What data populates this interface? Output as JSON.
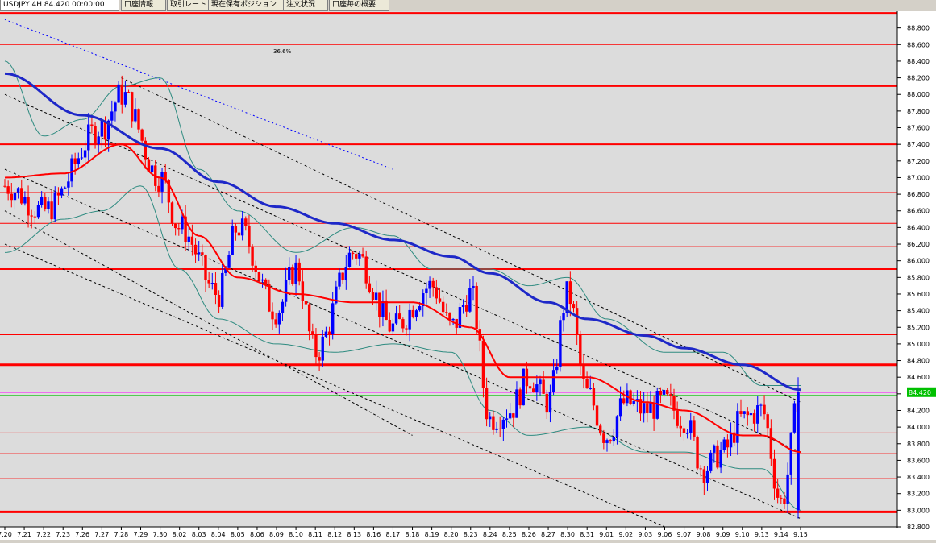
{
  "tabs": [
    {
      "label": "USDJPY 4H 84.420 00:00:00",
      "active": true
    },
    {
      "label": "口座情報",
      "active": false
    },
    {
      "label": "取引レート",
      "active": false
    },
    {
      "label": "現在保有ポジション",
      "active": false
    },
    {
      "label": "注文状況",
      "active": false
    },
    {
      "label": "口座毎の概要",
      "active": false
    }
  ],
  "colors": {
    "background": "#dcdcdc",
    "candle_up": "#0000ff",
    "candle_down": "#ff0000",
    "ma_long": "#1e28c8",
    "ma_short": "#ff0000",
    "bands": "#2e8b80",
    "horizontal_lines": "#ff0000",
    "price_line": "#ff00ff",
    "green_line": "#00c000",
    "price_box": "#00c000"
  },
  "chart_data": {
    "type": "candlestick",
    "symbol": "USDJPY",
    "timeframe": "4H",
    "current_price": 84.42,
    "current_price_label": "84.420",
    "ylim": [
      82.8,
      89.0
    ],
    "y_ticks": [
      "88.800",
      "88.600",
      "88.400",
      "88.200",
      "88.000",
      "87.800",
      "87.600",
      "87.400",
      "87.200",
      "87.000",
      "86.800",
      "86.600",
      "86.400",
      "86.200",
      "86.000",
      "85.800",
      "85.600",
      "85.400",
      "85.200",
      "85.000",
      "84.800",
      "84.600",
      "84.400",
      "84.200",
      "84.000",
      "83.800",
      "83.600",
      "83.400",
      "83.200",
      "83.000",
      "82.800"
    ],
    "x_ticks": [
      "7.20",
      "7.21",
      "7.22",
      "7.23",
      "7.26",
      "7.27",
      "7.28",
      "7.29",
      "7.30",
      "8.02",
      "8.03",
      "8.04",
      "8.05",
      "8.06",
      "8.09",
      "8.10",
      "8.11",
      "8.12",
      "8.13",
      "8.16",
      "8.17",
      "8.18",
      "8.19",
      "8.20",
      "8.23",
      "8.24",
      "8.25",
      "8.26",
      "8.27",
      "8.30",
      "8.31",
      "9.01",
      "9.02",
      "9.03",
      "9.06",
      "9.07",
      "9.08",
      "9.09",
      "9.10",
      "9.13",
      "9.14",
      "9.15"
    ],
    "annotation": "36.6%",
    "horizontal_lines": [
      {
        "price": 88.98,
        "width": 2
      },
      {
        "price": 88.6,
        "width": 1
      },
      {
        "price": 88.1,
        "width": 2
      },
      {
        "price": 87.4,
        "width": 2
      },
      {
        "price": 86.82,
        "width": 1
      },
      {
        "price": 86.45,
        "width": 1
      },
      {
        "price": 86.17,
        "width": 1
      },
      {
        "price": 85.9,
        "width": 2
      },
      {
        "price": 85.11,
        "width": 1
      },
      {
        "price": 84.75,
        "width": 3
      },
      {
        "price": 83.93,
        "width": 1
      },
      {
        "price": 83.68,
        "width": 1
      },
      {
        "price": 83.38,
        "width": 1
      },
      {
        "price": 82.98,
        "width": 3
      }
    ],
    "green_line": 84.38,
    "key_points": [
      {
        "date": "7.20",
        "price": 86.9
      },
      {
        "date": "7.22",
        "price": 86.6
      },
      {
        "date": "7.27",
        "price": 87.6
      },
      {
        "date": "7.28",
        "price": 88.0
      },
      {
        "date": "7.30",
        "price": 87.0
      },
      {
        "date": "8.02",
        "price": 86.4
      },
      {
        "date": "8.04",
        "price": 85.6
      },
      {
        "date": "8.05",
        "price": 86.4
      },
      {
        "date": "8.09",
        "price": 85.4
      },
      {
        "date": "8.10",
        "price": 85.9
      },
      {
        "date": "8.11",
        "price": 84.9
      },
      {
        "date": "8.13",
        "price": 86.1
      },
      {
        "date": "8.17",
        "price": 85.2
      },
      {
        "date": "8.19",
        "price": 85.7
      },
      {
        "date": "8.20",
        "price": 85.2
      },
      {
        "date": "8.23",
        "price": 85.6
      },
      {
        "date": "8.24",
        "price": 84.1
      },
      {
        "date": "8.25",
        "price": 84.2
      },
      {
        "date": "8.26",
        "price": 84.6
      },
      {
        "date": "8.27",
        "price": 84.3
      },
      {
        "date": "8.30",
        "price": 85.6
      },
      {
        "date": "8.31",
        "price": 84.4
      },
      {
        "date": "9.01",
        "price": 83.9
      },
      {
        "date": "9.02",
        "price": 84.3
      },
      {
        "date": "9.03",
        "price": 84.2
      },
      {
        "date": "9.06",
        "price": 84.3
      },
      {
        "date": "9.07",
        "price": 84.1
      },
      {
        "date": "9.08",
        "price": 83.5
      },
      {
        "date": "9.09",
        "price": 83.7
      },
      {
        "date": "9.10",
        "price": 84.1
      },
      {
        "date": "9.13",
        "price": 84.2
      },
      {
        "date": "9.14",
        "price": 83.1
      },
      {
        "date": "9.15",
        "price": 84.42
      }
    ],
    "ma_long": [
      {
        "date": "7.20",
        "price": 88.25
      },
      {
        "date": "7.26",
        "price": 87.75
      },
      {
        "date": "7.30",
        "price": 87.35
      },
      {
        "date": "8.04",
        "price": 86.95
      },
      {
        "date": "8.09",
        "price": 86.65
      },
      {
        "date": "8.12",
        "price": 86.45
      },
      {
        "date": "8.17",
        "price": 86.25
      },
      {
        "date": "8.20",
        "price": 86.05
      },
      {
        "date": "8.24",
        "price": 85.85
      },
      {
        "date": "8.27",
        "price": 85.5
      },
      {
        "date": "8.31",
        "price": 85.3
      },
      {
        "date": "9.03",
        "price": 85.1
      },
      {
        "date": "9.07",
        "price": 84.95
      },
      {
        "date": "9.10",
        "price": 84.75
      },
      {
        "date": "9.15",
        "price": 84.45
      }
    ],
    "ma_short": [
      {
        "date": "7.20",
        "price": 87.0
      },
      {
        "date": "7.23",
        "price": 87.05
      },
      {
        "date": "7.28",
        "price": 87.4
      },
      {
        "date": "7.30",
        "price": 87.0
      },
      {
        "date": "8.03",
        "price": 86.3
      },
      {
        "date": "8.05",
        "price": 85.8
      },
      {
        "date": "8.10",
        "price": 85.6
      },
      {
        "date": "8.13",
        "price": 85.5
      },
      {
        "date": "8.18",
        "price": 85.5
      },
      {
        "date": "8.23",
        "price": 85.2
      },
      {
        "date": "8.25",
        "price": 84.6
      },
      {
        "date": "8.27",
        "price": 84.6
      },
      {
        "date": "8.31",
        "price": 84.6
      },
      {
        "date": "9.03",
        "price": 84.3
      },
      {
        "date": "9.07",
        "price": 84.2
      },
      {
        "date": "9.10",
        "price": 83.9
      },
      {
        "date": "9.13",
        "price": 83.9
      },
      {
        "date": "9.15",
        "price": 83.7
      }
    ],
    "band_upper": [
      {
        "date": "7.20",
        "price": 88.4
      },
      {
        "date": "7.22",
        "price": 87.5
      },
      {
        "date": "7.26",
        "price": 87.7
      },
      {
        "date": "7.28",
        "price": 88.1
      },
      {
        "date": "7.30",
        "price": 88.2
      },
      {
        "date": "8.03",
        "price": 87.1
      },
      {
        "date": "8.05",
        "price": 86.6
      },
      {
        "date": "8.10",
        "price": 86.1
      },
      {
        "date": "8.13",
        "price": 86.4
      },
      {
        "date": "8.17",
        "price": 86.3
      },
      {
        "date": "8.19",
        "price": 85.9
      },
      {
        "date": "8.24",
        "price": 85.9
      },
      {
        "date": "8.26",
        "price": 85.7
      },
      {
        "date": "8.30",
        "price": 85.8
      },
      {
        "date": "9.01",
        "price": 85.3
      },
      {
        "date": "9.06",
        "price": 84.9
      },
      {
        "date": "9.09",
        "price": 84.9
      },
      {
        "date": "9.13",
        "price": 84.5
      },
      {
        "date": "9.15",
        "price": 84.5
      }
    ],
    "band_lower": [
      {
        "date": "7.20",
        "price": 86.1
      },
      {
        "date": "7.23",
        "price": 86.5
      },
      {
        "date": "7.27",
        "price": 86.6
      },
      {
        "date": "7.29",
        "price": 86.9
      },
      {
        "date": "8.02",
        "price": 85.9
      },
      {
        "date": "8.04",
        "price": 85.3
      },
      {
        "date": "8.09",
        "price": 85.0
      },
      {
        "date": "8.12",
        "price": 84.9
      },
      {
        "date": "8.17",
        "price": 85.0
      },
      {
        "date": "8.20",
        "price": 84.9
      },
      {
        "date": "8.24",
        "price": 84.2
      },
      {
        "date": "8.26",
        "price": 83.9
      },
      {
        "date": "8.31",
        "price": 84.0
      },
      {
        "date": "9.03",
        "price": 83.7
      },
      {
        "date": "9.07",
        "price": 83.7
      },
      {
        "date": "9.10",
        "price": 83.5
      },
      {
        "date": "9.13",
        "price": 83.5
      },
      {
        "date": "9.15",
        "price": 83.0
      }
    ],
    "trend_lines": [
      {
        "from": {
          "date": "7.20",
          "price": 88.9
        },
        "to": {
          "date": "8.17",
          "price": 87.1
        },
        "color": "#0000ff",
        "style": "dotted"
      },
      {
        "from": {
          "date": "7.28",
          "price": 88.2
        },
        "to": {
          "date": "9.15",
          "price": 84.3
        },
        "color": "#000000",
        "style": "dashed"
      },
      {
        "from": {
          "date": "7.20",
          "price": 88.0
        },
        "to": {
          "date": "9.15",
          "price": 83.7
        },
        "color": "#000000",
        "style": "dashed"
      },
      {
        "from": {
          "date": "7.20",
          "price": 87.1
        },
        "to": {
          "date": "9.15",
          "price": 82.9
        },
        "color": "#000000",
        "style": "dashed"
      },
      {
        "from": {
          "date": "7.20",
          "price": 86.6
        },
        "to": {
          "date": "8.18",
          "price": 83.9
        },
        "color": "#000000",
        "style": "dashed"
      },
      {
        "from": {
          "date": "7.20",
          "price": 86.2
        },
        "to": {
          "date": "9.06",
          "price": 82.8
        },
        "color": "#000000",
        "style": "dashed"
      }
    ]
  }
}
